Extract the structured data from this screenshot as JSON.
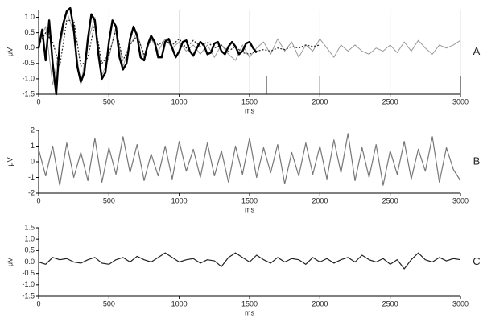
{
  "chart_data": [
    {
      "type": "line",
      "panel_label": "A",
      "xlabel": "ms",
      "ylabel": "μV",
      "grid": true,
      "xlim": [
        0,
        3000
      ],
      "xticks": [
        0,
        500,
        1000,
        1500,
        2000,
        2500,
        3000
      ],
      "ylim": [
        -1.5,
        1.25
      ],
      "yticks": [
        {
          "value": 1,
          "label": "1.0"
        },
        {
          "value": 0.5,
          "label": "0.5"
        },
        {
          "value": 0,
          "label": "0.0"
        },
        {
          "value": -0.5,
          "label": "-0.5"
        },
        {
          "value": -1,
          "label": "-1.0"
        },
        {
          "value": -1.5,
          "label": "-1.5"
        }
      ],
      "events": [
        1620,
        2000,
        3000
      ],
      "series": [
        {
          "color": "#999999",
          "width": 1,
          "style": "solid",
          "x": [
            0,
            50,
            100,
            150,
            200,
            250,
            300,
            350,
            400,
            450,
            500,
            550,
            600,
            650,
            700,
            750,
            800,
            850,
            900,
            950,
            1000,
            1050,
            1100,
            1150,
            1200,
            1250,
            1300,
            1350,
            1400,
            1450,
            1500,
            1550,
            1600,
            1650,
            1700,
            1750,
            1800,
            1850,
            1900,
            1950,
            2000,
            2050,
            2100,
            2150,
            2200,
            2250,
            2300,
            2350,
            2400,
            2450,
            2500,
            2550,
            2600,
            2650,
            2700,
            2750,
            2800,
            2850,
            2900,
            2950,
            3000
          ],
          "values": [
            0.2,
            0.7,
            -1.2,
            0,
            1.2,
            0.5,
            -1.2,
            0.2,
            1.0,
            -0.9,
            -0.3,
            0.7,
            -0.6,
            0.1,
            0.5,
            -0.3,
            0.3,
            -0.1,
            0.3,
            0,
            0.2,
            -0.1,
            0.1,
            -0.2,
            0.1,
            -0.3,
            0.1,
            -0.2,
            -0.4,
            0.1,
            -0.3,
            0,
            0.2,
            -0.2,
            0.3,
            -0.1,
            0.2,
            -0.3,
            0.1,
            -0.1,
            0.3,
            0,
            -0.3,
            0.1,
            -0.1,
            0.1,
            -0.1,
            -0.2,
            0,
            -0.1,
            0.1,
            -0.15,
            0.2,
            -0.1,
            0.25,
            0,
            -0.2,
            0.1,
            0,
            0.1,
            0.25
          ]
        },
        {
          "color": "#222222",
          "width": 1.2,
          "style": "dotted",
          "x": [
            0,
            50,
            100,
            150,
            200,
            250,
            300,
            350,
            400,
            450,
            500,
            550,
            600,
            650,
            700,
            750,
            800,
            850,
            900,
            950,
            1000,
            1050,
            1100,
            1150,
            1200,
            1250,
            1300,
            1350,
            1400,
            1450,
            1500,
            1550,
            1600,
            1650,
            1700,
            1750,
            1800,
            1850,
            1900,
            1950,
            2000
          ],
          "values": [
            0.1,
            0.5,
            0.2,
            -0.6,
            0.9,
            0.9,
            -0.6,
            -0.3,
            0.8,
            -0.5,
            -0.2,
            0.6,
            -0.4,
            0.1,
            0.4,
            -0.2,
            0.3,
            0.1,
            0.25,
            0.1,
            0.3,
            0,
            0.25,
            0.05,
            0.2,
            0,
            0.1,
            -0.1,
            0.05,
            -0.15,
            -0.2,
            -0.1,
            -0.05,
            -0.1,
            0,
            -0.05,
            0.05,
            0,
            0.1,
            0.05,
            0.1
          ]
        },
        {
          "color": "#000000",
          "width": 2.4,
          "style": "solid",
          "x": [
            0,
            25,
            50,
            75,
            100,
            125,
            150,
            175,
            200,
            225,
            250,
            275,
            300,
            325,
            350,
            375,
            400,
            425,
            450,
            475,
            500,
            525,
            550,
            575,
            600,
            625,
            650,
            675,
            700,
            725,
            750,
            775,
            800,
            825,
            850,
            875,
            900,
            925,
            950,
            975,
            1000,
            1025,
            1050,
            1075,
            1100,
            1125,
            1150,
            1175,
            1200,
            1225,
            1250,
            1275,
            1300,
            1325,
            1350,
            1375,
            1400,
            1425,
            1450,
            1475,
            1500,
            1525,
            1550
          ],
          "values": [
            0,
            0.6,
            -0.4,
            0.9,
            -0.5,
            -1.5,
            0.2,
            0.8,
            1.2,
            1.3,
            0.6,
            -0.6,
            -1.1,
            -0.8,
            0.3,
            1.1,
            0.9,
            -0.2,
            -1.0,
            -0.8,
            0.2,
            0.9,
            0.7,
            -0.3,
            -0.7,
            -0.5,
            0.3,
            0.7,
            0.4,
            -0.3,
            -0.4,
            0.1,
            0.4,
            0.2,
            -0.3,
            -0.3,
            0.2,
            0.3,
            0,
            -0.3,
            -0.1,
            0.2,
            0.25,
            -0.1,
            -0.25,
            0,
            0.2,
            0.1,
            -0.2,
            -0.15,
            0.15,
            0.2,
            -0.1,
            -0.2,
            0.05,
            0.2,
            0.05,
            -0.2,
            -0.1,
            0.15,
            0.2,
            0,
            -0.15
          ]
        }
      ]
    },
    {
      "type": "line",
      "panel_label": "B",
      "xlabel": "ms",
      "ylabel": "μV",
      "grid": false,
      "xlim": [
        0,
        3000
      ],
      "xticks": [
        0,
        500,
        1000,
        1500,
        2000,
        2500,
        3000
      ],
      "ylim": [
        -2,
        2
      ],
      "yticks": [
        2,
        1,
        0,
        -1,
        -2
      ],
      "series": [
        {
          "color": "#777777",
          "width": 1.2,
          "style": "solid",
          "x": [
            0,
            50,
            100,
            150,
            200,
            250,
            300,
            350,
            400,
            450,
            500,
            550,
            600,
            650,
            700,
            750,
            800,
            850,
            900,
            950,
            1000,
            1050,
            1100,
            1150,
            1200,
            1250,
            1300,
            1350,
            1400,
            1450,
            1500,
            1550,
            1600,
            1650,
            1700,
            1750,
            1800,
            1850,
            1900,
            1950,
            2000,
            2050,
            2100,
            2150,
            2200,
            2250,
            2300,
            2350,
            2400,
            2450,
            2500,
            2550,
            2600,
            2650,
            2700,
            2750,
            2800,
            2850,
            2900,
            2950,
            3000
          ],
          "values": [
            0.8,
            -0.9,
            1.0,
            -1.5,
            1.2,
            -1.0,
            0.6,
            -1.2,
            1.5,
            -1.3,
            0.9,
            -0.8,
            1.6,
            -0.7,
            1.1,
            -1.2,
            0.5,
            -0.9,
            1.0,
            -1.1,
            1.3,
            -0.6,
            0.8,
            -1.0,
            1.2,
            -0.9,
            0.7,
            -1.3,
            1.0,
            -0.8,
            1.5,
            -1.0,
            0.9,
            -0.7,
            1.1,
            -1.4,
            0.6,
            -0.9,
            1.2,
            -0.8,
            1.0,
            -1.1,
            1.4,
            -0.7,
            1.8,
            -1.2,
            0.9,
            -1.0,
            1.1,
            -1.5,
            0.7,
            -0.8,
            1.3,
            -1.1,
            0.8,
            -0.6,
            1.6,
            -1.3,
            0.9,
            -0.5,
            -1.2
          ]
        }
      ]
    },
    {
      "type": "line",
      "panel_label": "C",
      "xlabel": "ms",
      "ylabel": "μV",
      "grid": false,
      "xlim": [
        0,
        3000
      ],
      "xticks": [
        0,
        500,
        1000,
        1500,
        2000,
        2500,
        3000
      ],
      "ylim": [
        -1.5,
        1.5
      ],
      "yticks": [
        {
          "value": 1.5,
          "label": "1.5"
        },
        {
          "value": 1,
          "label": "1.0"
        },
        {
          "value": 0.5,
          "label": "0.5"
        },
        {
          "value": 0,
          "label": "0.0"
        },
        {
          "value": -0.5,
          "label": "-0.5"
        },
        {
          "value": -1,
          "label": "-1.0"
        },
        {
          "value": -1.5,
          "label": "-1.5"
        }
      ],
      "series": [
        {
          "color": "#222222",
          "width": 1.2,
          "style": "solid",
          "x": [
            0,
            50,
            100,
            150,
            200,
            250,
            300,
            350,
            400,
            450,
            500,
            550,
            600,
            650,
            700,
            750,
            800,
            850,
            900,
            950,
            1000,
            1050,
            1100,
            1150,
            1200,
            1250,
            1300,
            1350,
            1400,
            1450,
            1500,
            1550,
            1600,
            1650,
            1700,
            1750,
            1800,
            1850,
            1900,
            1950,
            2000,
            2050,
            2100,
            2150,
            2200,
            2250,
            2300,
            2350,
            2400,
            2450,
            2500,
            2550,
            2600,
            2650,
            2700,
            2750,
            2800,
            2850,
            2900,
            2950,
            3000
          ],
          "values": [
            0,
            -0.1,
            0.2,
            0.1,
            0.15,
            0,
            -0.05,
            0.1,
            0.2,
            -0.05,
            -0.1,
            0.1,
            0.2,
            0,
            0.25,
            0.1,
            0,
            0.2,
            0.4,
            0.2,
            0,
            0.1,
            0.15,
            -0.05,
            0.1,
            0.05,
            -0.2,
            0.2,
            0.4,
            0.2,
            0,
            0.3,
            0.1,
            -0.05,
            0.2,
            0,
            0.15,
            0.1,
            -0.1,
            0.2,
            0,
            0.15,
            -0.05,
            0.1,
            0.2,
            0,
            0.3,
            0.1,
            0,
            0.15,
            -0.1,
            0.1,
            -0.3,
            0.1,
            0.4,
            0.1,
            0,
            0.2,
            0.05,
            0.15,
            0.1
          ]
        }
      ]
    }
  ]
}
